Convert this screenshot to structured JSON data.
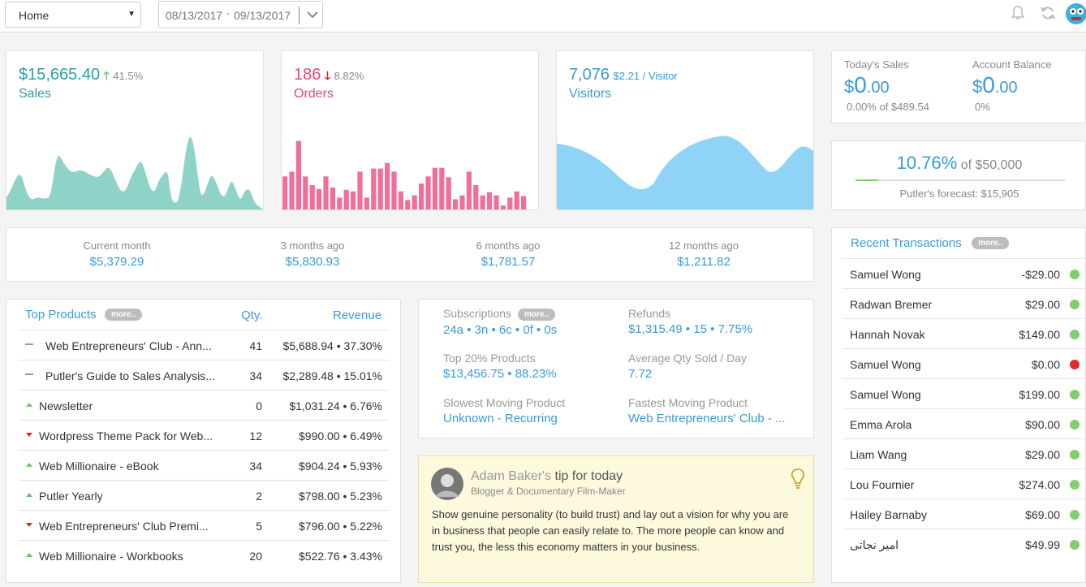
{
  "topbar": {
    "selected_view": "Home",
    "date_from": "08/13/2017",
    "date_to": "09/13/2017",
    "date_dash": "-"
  },
  "sales": {
    "value": "$15,665.40",
    "change": "41.5%",
    "label": "Sales"
  },
  "orders": {
    "value": "186",
    "change": "8.82%",
    "label": "Orders",
    "bars": [
      0.44,
      0.5,
      0.89,
      0.44,
      0.33,
      0.28,
      0.44,
      0.3,
      0.17,
      0.27,
      0.25,
      0.5,
      0.17,
      0.54,
      0.54,
      0.61,
      0.5,
      0.25,
      0.14,
      0.2,
      0.35,
      0.44,
      0.55,
      0.55,
      0.43,
      0.15,
      0.2,
      0.5,
      0.33,
      0.2,
      0.24,
      0.2,
      0.07,
      0.17,
      0.25,
      0.19,
      0.01,
      0.01
    ]
  },
  "visitors": {
    "value": "7,076",
    "per_visitor": "$2.21 / Visitor",
    "label": "Visitors"
  },
  "today": {
    "sales_label": "Today's Sales",
    "sales_currency": "$",
    "sales_main": "0",
    "sales_cents": ".00",
    "sales_sub": "0.00% of $489.54",
    "balance_label": "Account Balance",
    "balance_currency": "$",
    "balance_main": "0",
    "balance_cents": ".00",
    "balance_sub": "0%"
  },
  "forecast": {
    "percent": "10.76%",
    "of_text": "of $50,000",
    "progress": 0.1076,
    "forecast_text": "Putler's forecast: $15,905"
  },
  "periods": [
    {
      "label": "Current month",
      "value": "$5,379.29"
    },
    {
      "label": "3 months ago",
      "value": "$5,830.93"
    },
    {
      "label": "6 months ago",
      "value": "$1,781.57"
    },
    {
      "label": "12 months ago",
      "value": "$1,211.82"
    }
  ],
  "top_products": {
    "title": "Top Products",
    "more_label": "more..",
    "qty_header": "Qty.",
    "revenue_header": "Revenue",
    "rows": [
      {
        "trend": "flat",
        "name": "Web Entrepreneurs' Club - Ann...",
        "qty": "41",
        "revenue": "$5,688.94 • 37.30%"
      },
      {
        "trend": "flat",
        "name": "Putler's Guide to Sales Analysis...",
        "qty": "34",
        "revenue": "$2,289.48 • 15.01%"
      },
      {
        "trend": "up",
        "name": "Newsletter",
        "qty": "0",
        "revenue": "$1,031.24 • 6.76%"
      },
      {
        "trend": "down",
        "name": "Wordpress Theme Pack for Web...",
        "qty": "12",
        "revenue": "$990.00 • 6.49%"
      },
      {
        "trend": "up",
        "name": "Web Millionaire - eBook",
        "qty": "34",
        "revenue": "$904.24 • 5.93%"
      },
      {
        "trend": "up",
        "name": "Putler Yearly",
        "qty": "2",
        "revenue": "$798.00 • 5.23%"
      },
      {
        "trend": "down",
        "name": "Web Entrepreneurs' Club Premi...",
        "qty": "5",
        "revenue": "$796.00 • 5.22%"
      },
      {
        "trend": "up",
        "name": "Web Millionaire - Workbooks",
        "qty": "20",
        "revenue": "$522.76 • 3.43%"
      }
    ]
  },
  "stats": {
    "subscriptions_label": "Subscriptions",
    "subscriptions_more": "more..",
    "subscriptions_value": "24a • 3n • 6c • 0f • 0s",
    "refunds_label": "Refunds",
    "refunds_value": "$1,315.49 • 15 • 7.75%",
    "top20_label": "Top 20% Products",
    "top20_value": "$13,456.75 • 88.23%",
    "avgqty_label": "Average Qty Sold / Day",
    "avgqty_value": "7.72",
    "slowest_label": "Slowest Moving Product",
    "slowest_value": "Unknown - Recurring",
    "fastest_label": "Fastest Moving Product",
    "fastest_value": "Web Entrepreneurs' Club - ..."
  },
  "tip": {
    "author": "Adam Baker's",
    "title_suffix": "tip for today",
    "role": "Blogger & Documentary Film-Maker",
    "text": "Show genuine personality (to build trust) and lay out a vision for why you are in business that people can easily relate to. The more people can know and trust you, the less this economy matters in your business."
  },
  "transactions": {
    "title": "Recent Transactions",
    "more_label": "more..",
    "rows": [
      {
        "name": "Samuel Wong",
        "amount": "-$29.00",
        "status": "success"
      },
      {
        "name": "Radwan Bremer",
        "amount": "$29.00",
        "status": "success"
      },
      {
        "name": "Hannah Novak",
        "amount": "$149.00",
        "status": "success"
      },
      {
        "name": "Samuel Wong",
        "amount": "$0.00",
        "status": "failed"
      },
      {
        "name": "Samuel Wong",
        "amount": "$199.00",
        "status": "success"
      },
      {
        "name": "Emma Arola",
        "amount": "$90.00",
        "status": "success"
      },
      {
        "name": "Liam Wang",
        "amount": "$29.00",
        "status": "success"
      },
      {
        "name": "Lou Fournier",
        "amount": "$274.00",
        "status": "success"
      },
      {
        "name": "Hailey Barnaby",
        "amount": "$69.00",
        "status": "success"
      },
      {
        "name": "امیر نجاتی",
        "amount": "$49.99",
        "status": "success"
      }
    ]
  },
  "colors": {
    "teal": "#2ba0a0",
    "pink": "#e8467c",
    "blue": "#3a9ad9",
    "success": "#7fcf6e",
    "failed": "#e02b2b"
  }
}
